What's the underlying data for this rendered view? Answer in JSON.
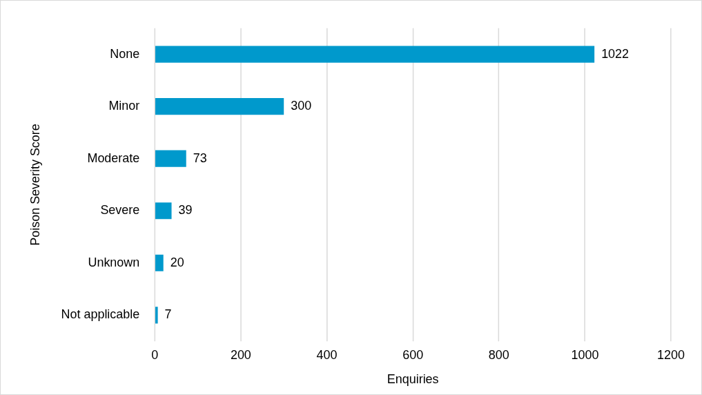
{
  "chart_data": {
    "type": "bar",
    "orientation": "horizontal",
    "xlabel": "Enquiries",
    "ylabel": "Poison Severity Score",
    "categories": [
      "None",
      "Minor",
      "Moderate",
      "Severe",
      "Unknown",
      "Not applicable"
    ],
    "values": [
      1022,
      300,
      73,
      39,
      20,
      7
    ],
    "color": "#0099cc",
    "xlim": [
      0,
      1200
    ],
    "xticks": [
      0,
      200,
      400,
      600,
      800,
      1000,
      1200
    ],
    "grid": "x",
    "data_labels": true,
    "legend": false
  }
}
